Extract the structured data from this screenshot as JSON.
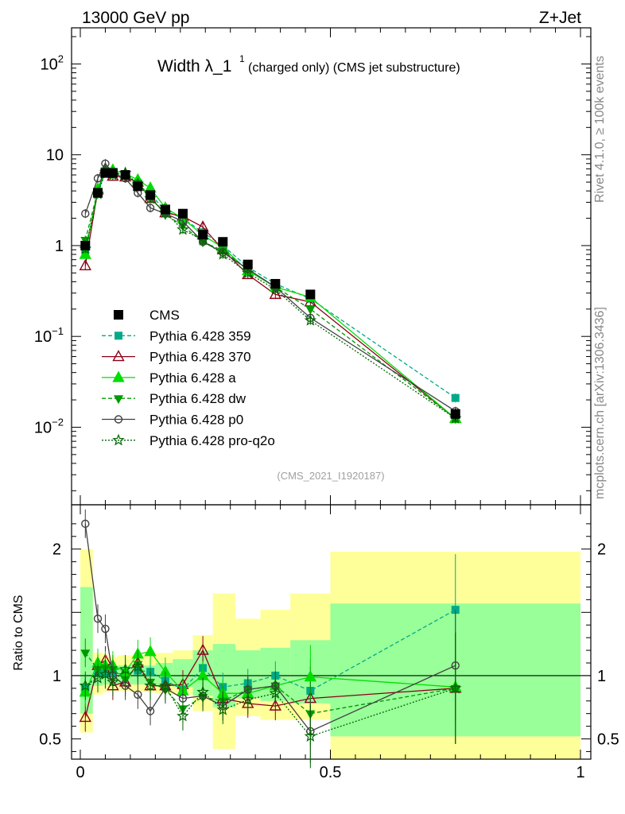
{
  "header": {
    "energy_label": "13000 GeV pp",
    "process_label": "Z+Jet",
    "rivet_label": "Rivet 4.1.0, ≥ 100k events",
    "site_label": "mcplots.cern.ch [arXiv:1306.3436]",
    "analysis_id": "(CMS_2021_I1920187)"
  },
  "colors": {
    "data": "#000000",
    "p359": "#00aa88",
    "p370": "#8b0018",
    "pa": "#00dd00",
    "pdw": "#009900",
    "pp0": "#404040",
    "pq2o": "#006600",
    "band_yellow": "#ffff99",
    "band_green": "#99ff99"
  },
  "chart_data": [
    {
      "type": "line",
      "title_main": "Width λ_1",
      "title_sup": "1",
      "title_sub": "(charged only) (CMS jet substructure)",
      "yscale": "log",
      "xlim": [
        0,
        1
      ],
      "ylim": [
        0.0014,
        250
      ],
      "yticks": [
        {
          "v": 100,
          "base": "10",
          "exp": "2"
        },
        {
          "v": 10,
          "base": "10",
          "exp": ""
        },
        {
          "v": 1,
          "base": "1",
          "exp": ""
        },
        {
          "v": 0.1,
          "base": "10",
          "exp": "−1"
        },
        {
          "v": 0.01,
          "base": "10",
          "exp": "−2"
        }
      ],
      "legend_position": "bottom-left",
      "x": [
        0.01,
        0.035,
        0.05,
        0.065,
        0.09,
        0.115,
        0.14,
        0.17,
        0.205,
        0.245,
        0.285,
        0.335,
        0.39,
        0.46,
        0.75
      ],
      "data": {
        "name": "CMS",
        "values": [
          1.0,
          3.8,
          6.3,
          6.3,
          6.0,
          4.5,
          3.6,
          2.5,
          2.25,
          1.32,
          1.1,
          0.62,
          0.38,
          0.29,
          0.014
        ],
        "errors": [
          0.05,
          0.2,
          0.3,
          0.3,
          0.3,
          0.2,
          0.2,
          0.12,
          0.12,
          0.08,
          0.07,
          0.04,
          0.03,
          0.02,
          0.002
        ]
      },
      "series": [
        {
          "name": "Pythia 6.428 359",
          "key": "p359",
          "marker": "square",
          "dash": "5,3",
          "values": [
            0.9,
            3.9,
            6.4,
            6.4,
            6.1,
            4.7,
            3.7,
            2.4,
            2.0,
            1.4,
            1.0,
            0.58,
            0.38,
            0.26,
            0.021
          ]
        },
        {
          "name": "Pythia 6.428 370",
          "key": "p370",
          "marker": "triangle-open",
          "dash": "",
          "values": [
            0.6,
            4.1,
            7.0,
            5.8,
            5.7,
            5.0,
            3.3,
            2.3,
            2.1,
            1.6,
            0.9,
            0.48,
            0.29,
            0.24,
            0.0125
          ]
        },
        {
          "name": "Pythia 6.428 a",
          "key": "pa",
          "marker": "triangle",
          "dash": "",
          "values": [
            0.8,
            4.2,
            6.8,
            6.8,
            6.2,
            5.3,
            4.3,
            2.6,
            2.0,
            1.3,
            0.95,
            0.53,
            0.35,
            0.27,
            0.0125
          ]
        },
        {
          "name": "Pythia 6.428 dw",
          "key": "pdw",
          "marker": "triangle-down",
          "dash": "5,3",
          "values": [
            1.15,
            4.0,
            6.7,
            6.6,
            5.8,
            4.9,
            3.4,
            2.2,
            1.65,
            1.1,
            0.88,
            0.55,
            0.35,
            0.2,
            0.0125
          ]
        },
        {
          "name": "Pythia 6.428 p0",
          "key": "pp0",
          "marker": "circle-open",
          "dash": "",
          "values": [
            2.25,
            5.5,
            8.0,
            6.3,
            5.5,
            3.8,
            2.6,
            2.25,
            1.85,
            1.1,
            0.84,
            0.55,
            0.35,
            0.16,
            0.015
          ]
        },
        {
          "name": "Pythia 6.428 pro-q2o",
          "key": "pq2o",
          "marker": "star",
          "dash": "2,2",
          "values": [
            0.92,
            3.7,
            6.4,
            6.0,
            6.3,
            4.8,
            3.3,
            2.3,
            1.5,
            1.15,
            0.8,
            0.5,
            0.33,
            0.15,
            0.0125
          ]
        }
      ]
    },
    {
      "type": "line",
      "ylabel": "Ratio to CMS",
      "xlim": [
        0,
        1
      ],
      "ylim": [
        0.34,
        2.35
      ],
      "xticks": [
        {
          "v": 0,
          "label": "0"
        },
        {
          "v": 0.5,
          "label": "0.5"
        },
        {
          "v": 1,
          "label": "1"
        }
      ],
      "yticks": [
        {
          "v": 0.5,
          "label": "0.5"
        },
        {
          "v": 1,
          "label": "1"
        },
        {
          "v": 2,
          "label": "2"
        }
      ],
      "bins": [
        [
          0.0,
          0.025,
          0.55,
          2.0,
          0.7,
          1.7
        ],
        [
          0.025,
          0.045,
          0.85,
          1.18,
          0.92,
          1.1
        ],
        [
          0.045,
          0.055,
          0.87,
          1.17,
          0.93,
          1.08
        ],
        [
          0.055,
          0.075,
          0.88,
          1.15,
          0.93,
          1.08
        ],
        [
          0.075,
          0.1,
          0.88,
          1.16,
          0.93,
          1.08
        ],
        [
          0.1,
          0.125,
          0.87,
          1.16,
          0.93,
          1.08
        ],
        [
          0.125,
          0.15,
          0.87,
          1.17,
          0.93,
          1.08
        ],
        [
          0.15,
          0.185,
          0.86,
          1.18,
          0.92,
          1.1
        ],
        [
          0.185,
          0.225,
          0.85,
          1.2,
          0.91,
          1.13
        ],
        [
          0.225,
          0.265,
          0.72,
          1.32,
          0.84,
          1.2
        ],
        [
          0.265,
          0.31,
          0.42,
          1.65,
          0.75,
          1.25
        ],
        [
          0.31,
          0.36,
          0.68,
          1.45,
          0.82,
          1.2
        ],
        [
          0.36,
          0.42,
          0.65,
          1.52,
          0.8,
          1.22
        ],
        [
          0.42,
          0.5,
          0.65,
          1.65,
          0.78,
          1.28
        ],
        [
          0.5,
          1.0,
          0.34,
          1.98,
          0.52,
          1.57
        ]
      ],
      "series": [
        {
          "key": "p359",
          "values": [
            0.9,
            1.02,
            1.02,
            1.02,
            1.01,
            1.04,
            1.03,
            0.96,
            0.89,
            1.06,
            0.91,
            0.94,
            1.0,
            0.88,
            1.52
          ]
        },
        {
          "key": "p370",
          "values": [
            0.67,
            1.08,
            1.12,
            0.92,
            0.95,
            1.1,
            0.92,
            0.92,
            0.93,
            1.2,
            0.82,
            0.78,
            0.76,
            0.82,
            0.9
          ]
        },
        {
          "key": "pa",
          "values": [
            0.87,
            1.1,
            1.08,
            1.08,
            1.03,
            1.17,
            1.19,
            1.03,
            0.88,
            1.0,
            0.86,
            0.86,
            0.92,
            0.99,
            0.91
          ]
        },
        {
          "key": "pdw",
          "values": [
            1.18,
            1.05,
            1.06,
            1.05,
            0.97,
            1.09,
            0.95,
            0.89,
            0.74,
            0.83,
            0.8,
            0.89,
            0.92,
            0.7,
            0.9
          ]
        },
        {
          "key": "pp0",
          "values": [
            2.2,
            1.45,
            1.37,
            1.0,
            0.92,
            0.85,
            0.72,
            0.9,
            0.82,
            0.84,
            0.76,
            0.89,
            0.92,
            0.56,
            1.08
          ]
        },
        {
          "key": "pq2o",
          "values": [
            0.92,
            0.98,
            1.01,
            0.95,
            1.05,
            1.07,
            0.92,
            0.92,
            0.68,
            0.87,
            0.73,
            0.81,
            0.86,
            0.52,
            0.9
          ]
        }
      ]
    }
  ]
}
